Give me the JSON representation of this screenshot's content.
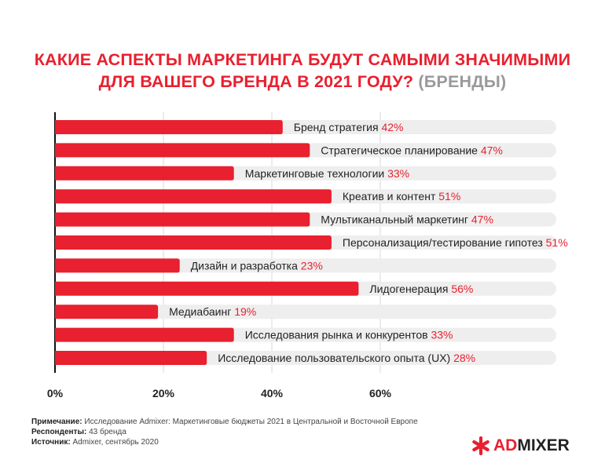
{
  "title": {
    "line1": "КАКИЕ АСПЕКТЫ МАРКЕТИНГА БУДУТ САМЫМИ ЗНАЧИМЫМИ",
    "line2": "ДЛЯ ВАШЕГО БРЕНДА В 2021 ГОДУ?",
    "suffix": "(БРЕНДЫ)"
  },
  "chart_data": {
    "type": "bar",
    "orientation": "horizontal",
    "categories": [
      "Бренд стратегия",
      "Стратегическое планирование",
      "Маркетинговые технологии",
      "Креатив и контент",
      "Мультиканальный маркетинг",
      "Персонализация/тестирование гипотез",
      "Дизайн и разработка",
      "Лидогенерация",
      "Медиабаинг",
      "Исследования рынка и конкурентов",
      "Исследование пользовательского опыта (UX)"
    ],
    "values": [
      42,
      47,
      33,
      51,
      47,
      51,
      23,
      56,
      19,
      33,
      28
    ],
    "value_labels": [
      "42%",
      "47%",
      "33%",
      "51%",
      "47%",
      "51%",
      "23%",
      "56%",
      "19%",
      "33%",
      "28%"
    ],
    "xlim": [
      0,
      93
    ],
    "xticks": [
      0,
      20,
      40,
      60
    ],
    "xtick_labels": [
      "0%",
      "20%",
      "40%",
      "60%"
    ],
    "grid": true,
    "colors": {
      "bar": "#e8202f",
      "track": "#eeeeee",
      "grid": "#d9d9d9",
      "value": "#e8202f"
    }
  },
  "notes": [
    {
      "label": "Примечание:",
      "text": " Исследование Admixer: Маркетинговые бюджеты 2021 в Центральной и Восточной Европе"
    },
    {
      "label": "Респонденты:",
      "text": " 43 бренда"
    },
    {
      "label": "Источник:",
      "text": " Admixer, сентябрь 2020"
    }
  ],
  "logo": {
    "part1": "AD",
    "part2": "MIXER",
    "icon": "asterisk-icon",
    "color": "#e8202f"
  }
}
